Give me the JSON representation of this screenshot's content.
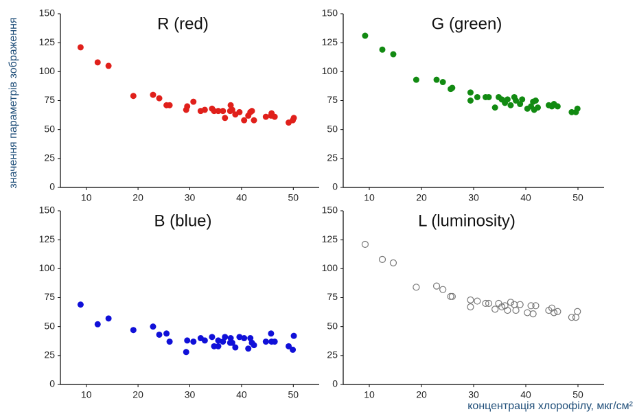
{
  "y_label": "значення параметрів зображення",
  "x_label": "концентрація хлорофілу, мкг/см²",
  "chart_data": [
    {
      "type": "scatter",
      "title": "R (red)",
      "color": "#e0201b",
      "filled": true,
      "xlim": [
        5,
        55
      ],
      "ylim": [
        0,
        150
      ],
      "xticks": [
        10,
        20,
        30,
        40,
        50
      ],
      "yticks": [
        0,
        25,
        50,
        75,
        100,
        125,
        150
      ],
      "x": [
        8.9,
        12.2,
        14.3,
        19.1,
        22.9,
        24.1,
        25.5,
        26.1,
        29.3,
        29.5,
        30.7,
        32.1,
        32.9,
        34.3,
        34.7,
        35.5,
        36.4,
        36.8,
        37.8,
        37.9,
        38.2,
        38.8,
        39.6,
        40.5,
        41.3,
        41.7,
        42.0,
        42.4,
        44.7,
        45.7,
        45.8,
        46.4,
        49.1,
        49.9,
        50.1
      ],
      "values": [
        121,
        108,
        105,
        79,
        80,
        77,
        71,
        71,
        67,
        70,
        74,
        66,
        67,
        68,
        66,
        66,
        66,
        60,
        66,
        71,
        67,
        63,
        65,
        58,
        62,
        65,
        66,
        58,
        61,
        62,
        64,
        61,
        56,
        58,
        60
      ]
    },
    {
      "type": "scatter",
      "title": "G (green)",
      "color": "#128a12",
      "filled": true,
      "xlim": [
        5,
        55
      ],
      "ylim": [
        0,
        150
      ],
      "xticks": [
        10,
        20,
        30,
        40,
        50
      ],
      "yticks": [
        0,
        25,
        50,
        75,
        100,
        125,
        150
      ],
      "x": [
        9.2,
        12.5,
        14.6,
        19.0,
        22.9,
        24.1,
        25.6,
        25.9,
        29.4,
        29.4,
        30.7,
        32.3,
        32.9,
        34.1,
        34.8,
        35.4,
        36.0,
        36.5,
        37.1,
        37.8,
        38.1,
        38.9,
        39.3,
        40.3,
        41.0,
        41.4,
        41.6,
        41.9,
        42.3,
        44.4,
        45.0,
        45.4,
        46.1,
        48.8,
        49.6,
        49.9
      ],
      "values": [
        131,
        119,
        115,
        93,
        93,
        91,
        85,
        86,
        82,
        75,
        78,
        78,
        78,
        69,
        78,
        76,
        73,
        76,
        71,
        78,
        75,
        72,
        76,
        68,
        70,
        74,
        67,
        75,
        69,
        71,
        70,
        72,
        70,
        65,
        65,
        68
      ]
    },
    {
      "type": "scatter",
      "title": "B (blue)",
      "color": "#1010d8",
      "filled": true,
      "xlim": [
        5,
        55
      ],
      "ylim": [
        0,
        150
      ],
      "xticks": [
        10,
        20,
        30,
        40,
        50
      ],
      "yticks": [
        0,
        25,
        50,
        75,
        100,
        125,
        150
      ],
      "x": [
        8.9,
        12.2,
        14.3,
        19.1,
        22.9,
        24.1,
        25.5,
        26.1,
        29.3,
        29.5,
        30.7,
        32.1,
        32.9,
        34.3,
        34.7,
        35.5,
        35.5,
        36.4,
        36.8,
        37.8,
        37.9,
        38.2,
        38.8,
        39.6,
        40.5,
        41.3,
        41.7,
        42.0,
        42.4,
        44.7,
        45.7,
        45.8,
        46.4,
        49.1,
        49.9,
        50.1
      ],
      "values": [
        69,
        52,
        57,
        47,
        50,
        43,
        44,
        37,
        28,
        38,
        37,
        40,
        38,
        41,
        33,
        38,
        33,
        37,
        41,
        36,
        40,
        36,
        32,
        41,
        40,
        31,
        40,
        36,
        34,
        37,
        44,
        37,
        37,
        33,
        30,
        42
      ]
    },
    {
      "type": "scatter",
      "title": "L (luminosity)",
      "color": "#777777",
      "filled": false,
      "xlim": [
        5,
        55
      ],
      "ylim": [
        0,
        150
      ],
      "xticks": [
        10,
        20,
        30,
        40,
        50
      ],
      "yticks": [
        0,
        25,
        50,
        75,
        100,
        125,
        150
      ],
      "x": [
        9.2,
        12.5,
        14.6,
        19.0,
        22.9,
        24.1,
        25.6,
        25.9,
        29.4,
        29.4,
        30.7,
        32.3,
        32.9,
        34.1,
        34.8,
        35.4,
        36.0,
        36.5,
        37.1,
        37.8,
        38.1,
        38.9,
        40.3,
        41.0,
        41.4,
        41.9,
        44.4,
        45.0,
        45.4,
        46.1,
        48.8,
        49.6,
        49.9
      ],
      "values": [
        121,
        108,
        105,
        84,
        85,
        82,
        76,
        76,
        73,
        67,
        72,
        70,
        70,
        65,
        70,
        67,
        68,
        64,
        71,
        69,
        64,
        69,
        62,
        68,
        61,
        68,
        64,
        66,
        62,
        63,
        58,
        58,
        63
      ]
    }
  ]
}
